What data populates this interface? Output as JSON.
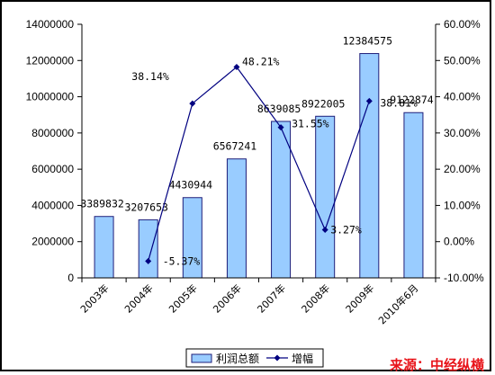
{
  "chart_data": {
    "type": "bar",
    "categories": [
      "2003年",
      "2004年",
      "2005年",
      "2006年",
      "2007年",
      "2008年",
      "2009年",
      "2010年6月"
    ],
    "series": [
      {
        "name": "利润总额",
        "type": "bar",
        "axis": "left",
        "values": [
          3389832,
          3207653,
          4430944,
          6567241,
          8639085,
          8922005,
          12384575,
          9122874
        ],
        "labels": [
          "3389832",
          "3207653",
          "4430944",
          "6567241",
          "8639085",
          "8922005",
          "12384575",
          "9122874"
        ]
      },
      {
        "name": "增幅",
        "type": "line",
        "axis": "right",
        "values": [
          null,
          -5.37,
          38.14,
          48.21,
          31.55,
          3.27,
          38.81,
          null
        ],
        "labels": [
          null,
          "-5.37%",
          "38.14%",
          "48.21%",
          "31.55%",
          "3.27%",
          "38.81%",
          null
        ]
      }
    ],
    "y_left": {
      "min": 0,
      "max": 14000000,
      "step": 2000000
    },
    "y_right": {
      "min": -10,
      "max": 60,
      "step": 10,
      "format": "percent"
    },
    "left_ticks": [
      "0",
      "2000000",
      "4000000",
      "6000000",
      "8000000",
      "10000000",
      "12000000",
      "14000000"
    ],
    "right_ticks": [
      "-10.00%",
      "0.00%",
      "10.00%",
      "20.00%",
      "30.00%",
      "40.00%",
      "50.00%",
      "60.00%"
    ],
    "legend": {
      "position": "bottom",
      "items": [
        "利润总额",
        "增幅"
      ]
    },
    "grid": false,
    "colors": {
      "bar_fill": "#99ccff",
      "bar_stroke": "#1f1f7a",
      "line": "#000080"
    }
  },
  "source_text": "来源：中经纵横"
}
